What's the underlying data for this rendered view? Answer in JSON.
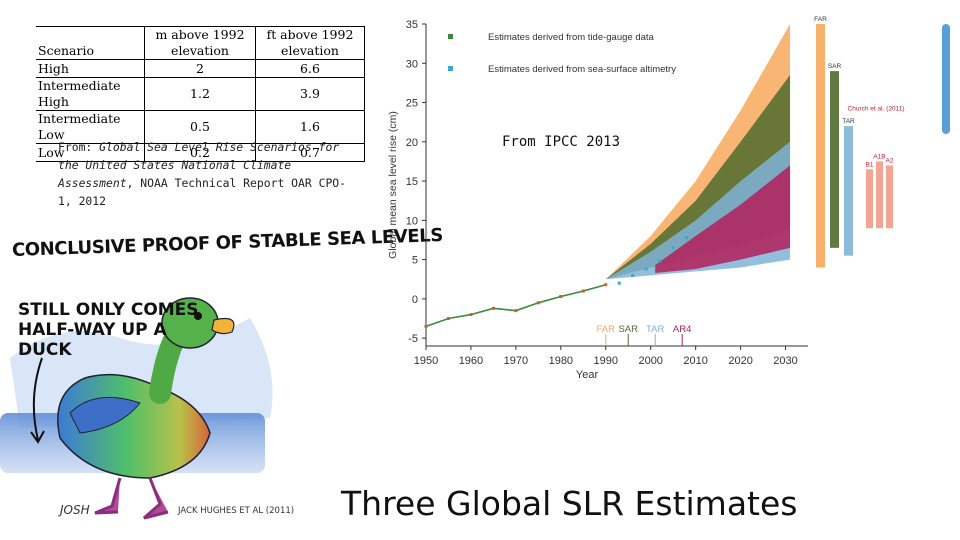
{
  "table": {
    "headers": {
      "scenario": "Scenario",
      "m": "m above 1992 elevation",
      "ft": "ft above 1992 elevation"
    },
    "rows": [
      {
        "scenario": "High",
        "m": "2",
        "ft": "6.6"
      },
      {
        "scenario": "Intermediate High",
        "m": "1.2",
        "ft": "3.9"
      },
      {
        "scenario": "Intermediate Low",
        "m": "0.5",
        "ft": "1.6"
      },
      {
        "scenario": "Low",
        "m": "0.2",
        "ft": "0.7"
      }
    ]
  },
  "source_note": {
    "prefix": "From: ",
    "title": "Global Sea Level Rise Scenarios for the United States National Climate Assessment",
    "suffix": ", NOAA Technical Report OAR CPO-1, 2012"
  },
  "cartoon": {
    "title": "CONCLUSIVE PROOF OF STABLE SEA LEVELS",
    "caption": "STILL ONLY COMES HALF-WAY UP A DUCK",
    "signature": "JOSH",
    "credit": "JACK HUGHES ET AL (2011)"
  },
  "ipcc_label": "From IPCC 2013",
  "slide_title": "Three Global SLR Estimates",
  "colors": {
    "far": "#f7a85a",
    "sar": "#4f6b2e",
    "tar": "#7fb4d8",
    "ar4": "#b3205a",
    "accent": "#5aa0d8"
  },
  "chart_data": {
    "type": "area",
    "xlabel": "Year",
    "ylabel": "Global mean sea level rise (cm)",
    "xlim": [
      1950,
      2035
    ],
    "ylim": [
      -6,
      35
    ],
    "xticks": [
      1950,
      1960,
      1970,
      1980,
      1990,
      2000,
      2010,
      2020,
      2030
    ],
    "yticks": [
      -5,
      0,
      5,
      10,
      15,
      20,
      25,
      30,
      35
    ],
    "legend": {
      "position": "top-left",
      "entries": [
        "Estimates derived from tide-gauge data",
        "Estimates derived from sea-surface altimetry"
      ]
    },
    "bands": [
      {
        "name": "FAR",
        "color": "#f7a85a",
        "start": 1990,
        "x": [
          1990,
          2000,
          2010,
          2020,
          2031
        ],
        "low": [
          2.5,
          4.0,
          5.0,
          6.5,
          8.0
        ],
        "high": [
          2.5,
          8.0,
          15.0,
          24.0,
          35.0
        ]
      },
      {
        "name": "SAR",
        "color": "#4f6b2e",
        "start": 1990,
        "x": [
          1990,
          2000,
          2010,
          2020,
          2031
        ],
        "low": [
          2.5,
          4.0,
          5.5,
          7.0,
          9.0
        ],
        "high": [
          2.5,
          7.0,
          12.5,
          20.0,
          28.5
        ]
      },
      {
        "name": "TAR",
        "color": "#7fb4d8",
        "start": 1990,
        "x": [
          1990,
          2000,
          2010,
          2020,
          2031
        ],
        "low": [
          2.5,
          3.0,
          3.5,
          4.0,
          5.0
        ],
        "high": [
          2.5,
          6.0,
          10.0,
          15.0,
          20.0
        ]
      },
      {
        "name": "AR4",
        "color": "#b3205a",
        "start": 2001,
        "x": [
          2001,
          2010,
          2020,
          2031
        ],
        "low": [
          3.3,
          3.8,
          5.0,
          6.5
        ],
        "high": [
          4.3,
          8.0,
          12.0,
          17.0
        ]
      }
    ],
    "observations": {
      "tide_gauge": {
        "x": [
          1950,
          1955,
          1960,
          1965,
          1970,
          1975,
          1980,
          1985,
          1990
        ],
        "y": [
          -3.5,
          -2.5,
          -2.0,
          -1.2,
          -1.5,
          -0.5,
          0.3,
          1.0,
          1.8
        ]
      },
      "altimetry": {
        "x": [
          1993,
          1996,
          1999,
          2002,
          2005,
          2008
        ],
        "y": [
          2.0,
          3.0,
          3.8,
          4.8,
          6.5,
          7.8
        ]
      }
    },
    "projection_markers": [
      {
        "name": "FAR",
        "year": 1990,
        "color": "#f7a85a"
      },
      {
        "name": "SAR",
        "year": 1995,
        "color": "#4f6b2e"
      },
      {
        "name": "TAR",
        "year": 2001,
        "color": "#7fb4d8"
      },
      {
        "name": "AR4",
        "year": 2007,
        "color": "#b3205a"
      }
    ],
    "side_bars": [
      {
        "name": "FAR",
        "low": 4.0,
        "high": 35.0,
        "color": "#f7a85a"
      },
      {
        "name": "SAR",
        "low": 6.5,
        "high": 29.0,
        "color": "#4f6b2e"
      },
      {
        "name": "TAR",
        "low": 5.5,
        "high": 22.0,
        "color": "#7fb4d8"
      },
      {
        "name": "B1",
        "low": 9.0,
        "high": 16.5,
        "color": "#f29a8a"
      },
      {
        "name": "A1B",
        "low": 9.0,
        "high": 17.5,
        "color": "#f29a8a"
      },
      {
        "name": "A2",
        "low": 9.0,
        "high": 17.0,
        "color": "#f29a8a"
      }
    ],
    "side_bar_group_label": "Church et al. (2011)"
  }
}
